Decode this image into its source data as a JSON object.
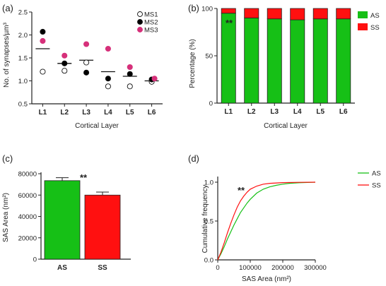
{
  "panels": [
    {
      "letter": "(a)"
    },
    {
      "letter": "(b)"
    },
    {
      "letter": "(c)"
    },
    {
      "letter": "(d)"
    }
  ],
  "colors": {
    "ms1": "#ffffff",
    "ms2": "#000000",
    "ms3": "#d6307a",
    "as": "#16c016",
    "ss": "#ff1010"
  },
  "chart_data": [
    {
      "type": "scatter",
      "categories": [
        "L1",
        "L2",
        "L3",
        "L4",
        "L5",
        "L6"
      ],
      "series": [
        {
          "name": "MS1",
          "values": [
            1.2,
            1.22,
            1.4,
            0.88,
            0.88,
            0.98
          ]
        },
        {
          "name": "MS2",
          "values": [
            2.07,
            1.38,
            1.18,
            1.05,
            1.15,
            1.03
          ]
        },
        {
          "name": "MS3",
          "values": [
            1.87,
            1.55,
            1.8,
            1.7,
            1.3,
            1.05
          ]
        }
      ],
      "means": [
        1.7,
        1.38,
        1.45,
        1.2,
        1.1,
        1.0
      ],
      "xlabel": "Cortical Layer",
      "ylabel": "No. of synapses/µm³",
      "ylim": [
        0.5,
        2.5
      ],
      "yticks": [
        "0.5",
        "1.0",
        "1.5",
        "2.0",
        "2.5"
      ],
      "legend": "top-right"
    },
    {
      "type": "bar",
      "stacked": true,
      "categories": [
        "L1",
        "L2",
        "L3",
        "L4",
        "L5",
        "L6"
      ],
      "series": [
        {
          "name": "AS",
          "values": [
            95,
            90,
            89,
            88,
            89,
            89
          ]
        },
        {
          "name": "SS",
          "values": [
            5,
            10,
            11,
            12,
            11,
            11
          ]
        }
      ],
      "annotation": "**",
      "xlabel": "Cortical Layer",
      "ylabel": "Percentage (%)",
      "ylim": [
        0,
        100
      ],
      "yticks": [
        "0",
        "50",
        "100"
      ],
      "legend": "top-right"
    },
    {
      "type": "bar",
      "categories": [
        "AS",
        "SS"
      ],
      "values": [
        73500,
        60000
      ],
      "errors": [
        2800,
        2800
      ],
      "annotation": "**",
      "ylabel": "SAS Area (nm²)",
      "ylim": [
        0,
        80000
      ],
      "yticks": [
        "0",
        "20000",
        "40000",
        "60000",
        "80000"
      ]
    },
    {
      "type": "line",
      "series": [
        {
          "name": "AS",
          "points": [
            [
              0,
              0
            ],
            [
              10000,
              0.08
            ],
            [
              20000,
              0.17
            ],
            [
              30000,
              0.27
            ],
            [
              40000,
              0.36
            ],
            [
              50000,
              0.45
            ],
            [
              60000,
              0.53
            ],
            [
              70000,
              0.61
            ],
            [
              80000,
              0.67
            ],
            [
              90000,
              0.73
            ],
            [
              100000,
              0.78
            ],
            [
              120000,
              0.86
            ],
            [
              140000,
              0.91
            ],
            [
              160000,
              0.94
            ],
            [
              180000,
              0.96
            ],
            [
              200000,
              0.975
            ],
            [
              220000,
              0.985
            ],
            [
              250000,
              0.993
            ],
            [
              300000,
              1.0
            ]
          ]
        },
        {
          "name": "SS",
          "points": [
            [
              0,
              0
            ],
            [
              10000,
              0.1
            ],
            [
              20000,
              0.22
            ],
            [
              30000,
              0.35
            ],
            [
              40000,
              0.47
            ],
            [
              50000,
              0.58
            ],
            [
              60000,
              0.68
            ],
            [
              70000,
              0.76
            ],
            [
              80000,
              0.82
            ],
            [
              90000,
              0.87
            ],
            [
              100000,
              0.91
            ],
            [
              120000,
              0.95
            ],
            [
              140000,
              0.975
            ],
            [
              160000,
              0.985
            ],
            [
              180000,
              0.99
            ],
            [
              200000,
              0.995
            ],
            [
              250000,
              0.998
            ],
            [
              300000,
              1.0
            ]
          ]
        }
      ],
      "annotation": "**",
      "xlabel": "SAS Area (nm²)",
      "ylabel": "Cumulative frequency",
      "xlim": [
        0,
        300000
      ],
      "ylim": [
        0,
        1.0
      ],
      "xticks": [
        "0",
        "100000",
        "200000",
        "300000"
      ],
      "yticks": [
        "0.0",
        "0.5",
        "1.0"
      ],
      "legend": "top-right"
    }
  ]
}
